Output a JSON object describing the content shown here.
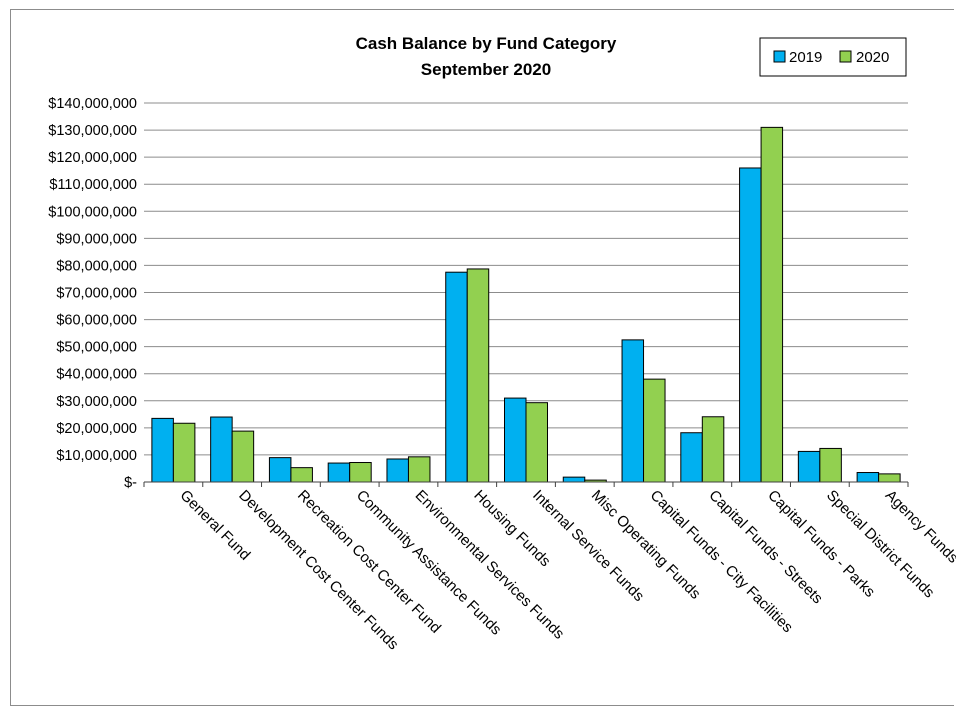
{
  "chart_data": {
    "type": "bar",
    "title": "Cash Balance  by Fund Category",
    "subtitle": "September 2020",
    "xlabel": "",
    "ylabel": "",
    "ylim": [
      0,
      140000000
    ],
    "y_ticks": [
      {
        "value": 0,
        "label": "$-"
      },
      {
        "value": 10000000,
        "label": "$10,000,000"
      },
      {
        "value": 20000000,
        "label": "$20,000,000"
      },
      {
        "value": 30000000,
        "label": "$30,000,000"
      },
      {
        "value": 40000000,
        "label": "$40,000,000"
      },
      {
        "value": 50000000,
        "label": "$50,000,000"
      },
      {
        "value": 60000000,
        "label": "$60,000,000"
      },
      {
        "value": 70000000,
        "label": "$70,000,000"
      },
      {
        "value": 80000000,
        "label": "$80,000,000"
      },
      {
        "value": 90000000,
        "label": "$90,000,000"
      },
      {
        "value": 100000000,
        "label": "$100,000,000"
      },
      {
        "value": 110000000,
        "label": "$110,000,000"
      },
      {
        "value": 120000000,
        "label": "$120,000,000"
      },
      {
        "value": 130000000,
        "label": "$130,000,000"
      },
      {
        "value": 140000000,
        "label": "$140,000,000"
      }
    ],
    "grid": true,
    "legend_position": "top-right",
    "categories": [
      "General Fund",
      "Development Cost Center Funds",
      "Recreation Cost Center Fund",
      "Community Assistance Funds",
      "Environmental Services Funds",
      "Housing Funds",
      "Internal Service Funds",
      "Misc Operating Funds",
      "Capital Funds - City Facilities",
      "Capital Funds - Streets",
      "Capital Funds - Parks",
      "Special District Funds",
      "Agency Funds"
    ],
    "series": [
      {
        "name": "2019",
        "color": "#00B0F0",
        "values": [
          23500000,
          24000000,
          9000000,
          7000000,
          8500000,
          77500000,
          31000000,
          1800000,
          52500000,
          18200000,
          116000000,
          11300000,
          3500000
        ]
      },
      {
        "name": "2020",
        "color": "#92D050",
        "values": [
          21700000,
          18800000,
          5300000,
          7200000,
          9300000,
          78700000,
          29300000,
          700000,
          38000000,
          24100000,
          131000000,
          12400000,
          3000000
        ]
      }
    ]
  }
}
